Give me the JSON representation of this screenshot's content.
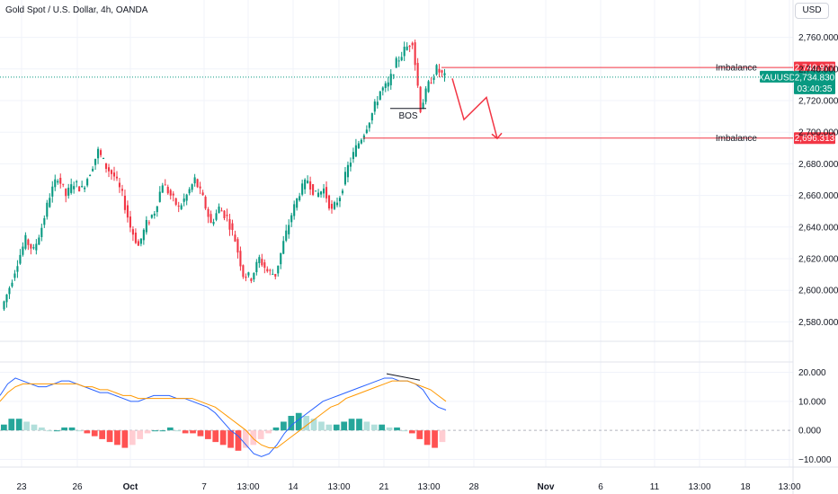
{
  "header": {
    "title": "Gold Spot / U.S. Dollar, 4h, OANDA",
    "currency": "USD"
  },
  "colors": {
    "up": "#089981",
    "down": "#f23645",
    "accent_red": "#f23645",
    "green_badge": "#089981",
    "macd": "#2962ff",
    "signal": "#ff9800"
  },
  "chart_data": [
    {
      "type": "candlestick",
      "title": "Gold Spot / U.S. Dollar, 4h, OANDA",
      "ylim": [
        2570,
        2770
      ],
      "y_ticks": [
        2580,
        2600,
        2620,
        2640,
        2660,
        2680,
        2700,
        2720,
        2740,
        2760
      ],
      "y_tick_labels": [
        "2,580.000",
        "2,600.000",
        "2,620.000",
        "2,640.000",
        "2,660.000",
        "2,680.000",
        "2,700.000",
        "2,720.000",
        "2,740.000",
        "2,760.000"
      ],
      "x_tick_labels": [
        "23",
        "26",
        "Oct",
        "7",
        "13:00",
        "14",
        "13:00",
        "21",
        "13:00",
        "28",
        "Nov",
        "6",
        "11",
        "13:00",
        "18",
        "13:00"
      ],
      "price_path": [
        2588,
        2602,
        2618,
        2632,
        2625,
        2640,
        2660,
        2672,
        2660,
        2668,
        2664,
        2675,
        2688,
        2678,
        2672,
        2660,
        2640,
        2628,
        2642,
        2650,
        2668,
        2660,
        2652,
        2660,
        2670,
        2658,
        2642,
        2652,
        2646,
        2632,
        2610,
        2608,
        2620,
        2612,
        2610,
        2630,
        2648,
        2662,
        2670,
        2660,
        2664,
        2650,
        2660,
        2678,
        2690,
        2700,
        2712,
        2726,
        2730,
        2744,
        2752,
        2758,
        2715,
        2730,
        2740,
        2734.83
      ],
      "annotations": [
        {
          "label": "Imbalance",
          "value": "2,740.977",
          "y": 2740.977
        },
        {
          "label": "Imbalance",
          "value": "2,696.313",
          "y": 2696.313
        },
        {
          "label": "BOS",
          "y": 2715
        }
      ],
      "current_price": {
        "symbol": "XAUUSD",
        "price": "2,734.830",
        "countdown": "03:40:35",
        "y": 2734.83
      },
      "projection_path": [
        2734,
        2708,
        2722,
        2696
      ]
    },
    {
      "type": "line",
      "title": "",
      "ylim": [
        -12,
        22
      ],
      "y_ticks": [
        20,
        10,
        0,
        -10
      ],
      "y_tick_labels": [
        "20.000",
        "10.000",
        "0.000",
        "−10.000"
      ],
      "series": [
        {
          "values": [
            12,
            16,
            18,
            17,
            16,
            15,
            15,
            16,
            17,
            17,
            16,
            15,
            14,
            13,
            13,
            12,
            11,
            10,
            10,
            11,
            12,
            12,
            12,
            11,
            11,
            10,
            9,
            8,
            6,
            3,
            0,
            -2,
            -5,
            -8,
            -9,
            -8,
            -5,
            -1,
            2,
            4,
            6,
            8,
            10,
            11,
            12,
            13,
            14,
            15,
            16,
            17,
            18,
            18,
            17,
            17,
            16,
            14,
            10,
            8,
            7
          ]
        },
        {
          "values": [
            10,
            13,
            15,
            16,
            16,
            16,
            16,
            16,
            16,
            16,
            16,
            15,
            15,
            14,
            14,
            13,
            12,
            12,
            11,
            11,
            11,
            11,
            11,
            11,
            11,
            11,
            10,
            9,
            8,
            6,
            4,
            2,
            0,
            -3,
            -5,
            -6,
            -6,
            -4,
            -2,
            0,
            2,
            4,
            6,
            8,
            9,
            11,
            12,
            13,
            14,
            15,
            16,
            17,
            17,
            17,
            16,
            15,
            14,
            12,
            10
          ]
        }
      ],
      "histogram": [
        2,
        4,
        4,
        3,
        2,
        1,
        0,
        0,
        1,
        1,
        0,
        -1,
        -2,
        -3,
        -4,
        -5,
        -6,
        -5,
        -3,
        -1,
        0,
        0,
        1,
        0,
        -1,
        -1,
        -2,
        -3,
        -4,
        -5,
        -6,
        -7,
        -6,
        -5,
        -3,
        -1,
        1,
        3,
        5,
        6,
        5,
        4,
        3,
        2,
        2,
        3,
        4,
        4,
        3,
        2,
        2,
        1,
        1,
        0,
        -1,
        -3,
        -5,
        -6,
        -4
      ]
    }
  ]
}
